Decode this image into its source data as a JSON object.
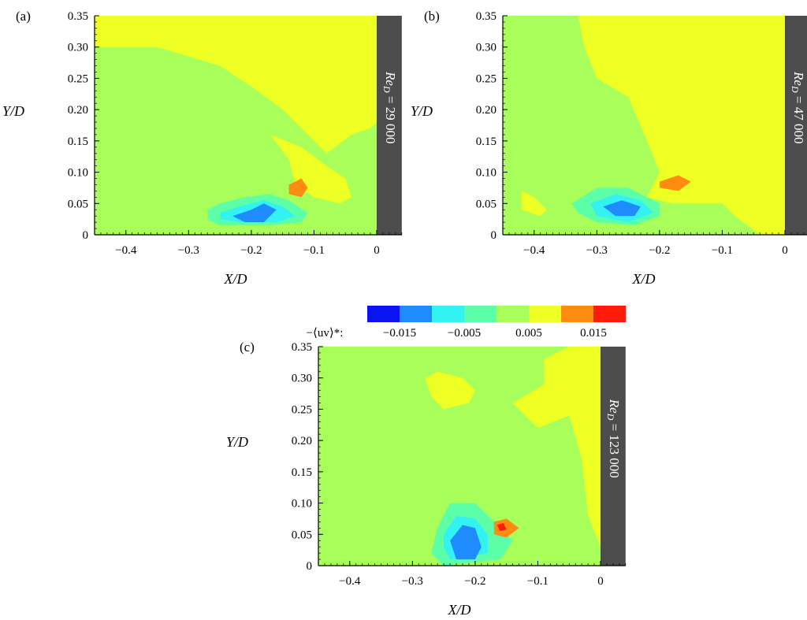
{
  "chart_data": {
    "type": "heatmap",
    "colorbar": {
      "label": "−⟨uv⟩*:",
      "tick_labels": [
        "−0.015",
        "−0.005",
        "0.005",
        "0.015"
      ],
      "tick_values": [
        -0.015,
        -0.005,
        0.005,
        0.015
      ],
      "range": [
        -0.02,
        0.02
      ],
      "colors": [
        "#0a14f0",
        "#1e8cff",
        "#33f2f2",
        "#5cffa8",
        "#a8ff5a",
        "#eeff24",
        "#ff8c10",
        "#ff1a0a"
      ]
    },
    "xlabel": "X/D",
    "ylabel": "Y/D",
    "xlim": [
      -0.45,
      0.04
    ],
    "ylim": [
      0,
      0.35
    ],
    "x_ticks": [
      -0.4,
      -0.3,
      -0.2,
      -0.1,
      0
    ],
    "x_tick_labels": [
      "−0.4",
      "−0.3",
      "−0.2",
      "−0.1",
      "0"
    ],
    "y_ticks": [
      0,
      0.05,
      0.1,
      0.15,
      0.2,
      0.25,
      0.3,
      0.35
    ],
    "y_tick_labels": [
      "0",
      "0.05",
      "0.10",
      "0.15",
      "0.20",
      "0.25",
      "0.30",
      "0.35"
    ],
    "wall_x": [
      0,
      0.04
    ],
    "panels": [
      {
        "label": "(a)",
        "wall_text": "Re_D = 29 000",
        "wall_main": "Re",
        "wall_sub": "D",
        "wall_rest": " = 29 000",
        "background_level": 0,
        "regions": [
          {
            "level": 1,
            "points": [
              [
                -0.45,
                0.35
              ],
              [
                -0.45,
                0.3
              ],
              [
                -0.35,
                0.3
              ],
              [
                -0.25,
                0.27
              ],
              [
                -0.19,
                0.23
              ],
              [
                -0.15,
                0.2
              ],
              [
                -0.11,
                0.16
              ],
              [
                -0.08,
                0.13
              ],
              [
                -0.04,
                0.16
              ],
              [
                -0.01,
                0.17
              ],
              [
                0,
                0.18
              ],
              [
                0,
                0.35
              ]
            ]
          },
          {
            "level": 1,
            "points": [
              [
                -0.17,
                0.16
              ],
              [
                -0.14,
                0.12
              ],
              [
                -0.13,
                0.08
              ],
              [
                -0.1,
                0.06
              ],
              [
                -0.06,
                0.05
              ],
              [
                -0.04,
                0.06
              ],
              [
                -0.05,
                0.09
              ],
              [
                -0.08,
                0.11
              ],
              [
                -0.12,
                0.14
              ]
            ]
          },
          {
            "level": 2,
            "points": [
              [
                -0.14,
                0.08
              ],
              [
                -0.12,
                0.09
              ],
              [
                -0.11,
                0.075
              ],
              [
                -0.12,
                0.06
              ],
              [
                -0.14,
                0.065
              ]
            ]
          },
          {
            "level": -1,
            "points": [
              [
                -0.27,
                0.04
              ],
              [
                -0.25,
                0.05
              ],
              [
                -0.21,
                0.06
              ],
              [
                -0.17,
                0.065
              ],
              [
                -0.14,
                0.055
              ],
              [
                -0.11,
                0.035
              ],
              [
                -0.12,
                0.02
              ],
              [
                -0.17,
                0.015
              ],
              [
                -0.25,
                0.015
              ],
              [
                -0.27,
                0.025
              ]
            ]
          },
          {
            "level": -2,
            "points": [
              [
                -0.25,
                0.035
              ],
              [
                -0.22,
                0.045
              ],
              [
                -0.18,
                0.055
              ],
              [
                -0.15,
                0.045
              ],
              [
                -0.13,
                0.03
              ],
              [
                -0.16,
                0.02
              ],
              [
                -0.22,
                0.02
              ],
              [
                -0.25,
                0.025
              ]
            ]
          },
          {
            "level": -3,
            "points": [
              [
                -0.23,
                0.03
              ],
              [
                -0.2,
                0.04
              ],
              [
                -0.18,
                0.05
              ],
              [
                -0.16,
                0.04
              ],
              [
                -0.18,
                0.02
              ],
              [
                -0.21,
                0.02
              ]
            ]
          }
        ]
      },
      {
        "label": "(b)",
        "wall_text": "Re_D = 47 000",
        "wall_main": "Re",
        "wall_sub": "D",
        "wall_rest": " = 47 000",
        "background_level": 0,
        "regions": [
          {
            "level": 1,
            "points": [
              [
                -0.33,
                0.35
              ],
              [
                -0.32,
                0.3
              ],
              [
                -0.3,
                0.25
              ],
              [
                -0.25,
                0.22
              ],
              [
                -0.22,
                0.15
              ],
              [
                -0.2,
                0.1
              ],
              [
                -0.22,
                0.06
              ],
              [
                -0.18,
                0.05
              ],
              [
                -0.1,
                0.05
              ],
              [
                -0.08,
                0.03
              ],
              [
                -0.04,
                0.0
              ],
              [
                0,
                0.0
              ],
              [
                0,
                0.35
              ]
            ]
          },
          {
            "level": 1,
            "points": [
              [
                -0.42,
                0.07
              ],
              [
                -0.4,
                0.06
              ],
              [
                -0.38,
                0.04
              ],
              [
                -0.39,
                0.03
              ],
              [
                -0.42,
                0.04
              ]
            ]
          },
          {
            "level": 2,
            "points": [
              [
                -0.2,
                0.085
              ],
              [
                -0.17,
                0.095
              ],
              [
                -0.15,
                0.085
              ],
              [
                -0.17,
                0.07
              ],
              [
                -0.2,
                0.075
              ]
            ]
          },
          {
            "level": -1,
            "points": [
              [
                -0.34,
                0.05
              ],
              [
                -0.3,
                0.075
              ],
              [
                -0.25,
                0.075
              ],
              [
                -0.2,
                0.05
              ],
              [
                -0.2,
                0.03
              ],
              [
                -0.24,
                0.015
              ],
              [
                -0.3,
                0.02
              ],
              [
                -0.33,
                0.035
              ]
            ]
          },
          {
            "level": -2,
            "points": [
              [
                -0.31,
                0.05
              ],
              [
                -0.27,
                0.065
              ],
              [
                -0.23,
                0.055
              ],
              [
                -0.21,
                0.035
              ],
              [
                -0.25,
                0.02
              ],
              [
                -0.3,
                0.03
              ]
            ]
          },
          {
            "level": -3,
            "points": [
              [
                -0.29,
                0.045
              ],
              [
                -0.26,
                0.055
              ],
              [
                -0.23,
                0.045
              ],
              [
                -0.24,
                0.03
              ],
              [
                -0.27,
                0.03
              ]
            ]
          }
        ]
      },
      {
        "label": "(c)",
        "wall_text": "Re_D = 123 000",
        "wall_main": "Re",
        "wall_sub": "D",
        "wall_rest": " = 123 000",
        "background_level": 0,
        "regions": [
          {
            "level": 1,
            "points": [
              [
                -0.28,
                0.3
              ],
              [
                -0.26,
                0.31
              ],
              [
                -0.22,
                0.3
              ],
              [
                -0.2,
                0.28
              ],
              [
                -0.21,
                0.26
              ],
              [
                -0.25,
                0.25
              ],
              [
                -0.27,
                0.27
              ]
            ]
          },
          {
            "level": 1,
            "points": [
              [
                -0.09,
                0.33
              ],
              [
                -0.05,
                0.35
              ],
              [
                0,
                0.35
              ],
              [
                0,
                0.03
              ],
              [
                -0.02,
                0.08
              ],
              [
                -0.03,
                0.17
              ],
              [
                -0.05,
                0.24
              ],
              [
                -0.1,
                0.22
              ],
              [
                -0.14,
                0.26
              ],
              [
                -0.09,
                0.29
              ]
            ]
          },
          {
            "level": -1,
            "points": [
              [
                -0.26,
                0.06
              ],
              [
                -0.24,
                0.1
              ],
              [
                -0.2,
                0.1
              ],
              [
                -0.17,
                0.07
              ],
              [
                -0.14,
                0.04
              ],
              [
                -0.16,
                0.01
              ],
              [
                -0.25,
                0.0
              ],
              [
                -0.27,
                0.02
              ]
            ]
          },
          {
            "level": -2,
            "points": [
              [
                -0.25,
                0.05
              ],
              [
                -0.23,
                0.08
              ],
              [
                -0.2,
                0.075
              ],
              [
                -0.18,
                0.05
              ],
              [
                -0.18,
                0.02
              ],
              [
                -0.24,
                0.01
              ],
              [
                -0.25,
                0.03
              ]
            ]
          },
          {
            "level": -3,
            "points": [
              [
                -0.24,
                0.04
              ],
              [
                -0.22,
                0.065
              ],
              [
                -0.2,
                0.06
              ],
              [
                -0.19,
                0.03
              ],
              [
                -0.2,
                0.01
              ],
              [
                -0.23,
                0.01
              ]
            ]
          },
          {
            "level": 2,
            "points": [
              [
                -0.17,
                0.07
              ],
              [
                -0.15,
                0.075
              ],
              [
                -0.13,
                0.06
              ],
              [
                -0.15,
                0.045
              ],
              [
                -0.17,
                0.05
              ]
            ]
          },
          {
            "level": 3,
            "points": [
              [
                -0.165,
                0.065
              ],
              [
                -0.155,
                0.068
              ],
              [
                -0.15,
                0.058
              ],
              [
                -0.16,
                0.055
              ]
            ]
          }
        ]
      }
    ]
  }
}
